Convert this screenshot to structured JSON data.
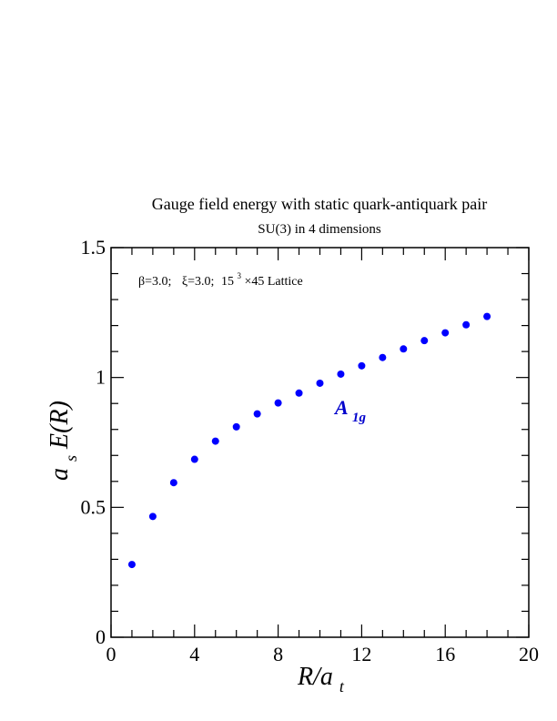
{
  "chart_data": {
    "type": "scatter",
    "title": "Gauge field energy with static quark-antiquark pair",
    "subtitle": "SU(3) in 4 dimensions",
    "annotation": {
      "beta": "β=3.0;",
      "xi": "ξ=3.0;",
      "lattice_base": "15",
      "lattice_exp": "3",
      "lattice_rest": "×45 Lattice"
    },
    "xlabel": {
      "main": "R/a",
      "sub": "t"
    },
    "ylabel": {
      "pre": "a",
      "sub": "s",
      "main": "E(R)"
    },
    "xlim": [
      0,
      20
    ],
    "ylim": [
      0,
      1.5
    ],
    "x_ticks": [
      "0",
      "4",
      "8",
      "12",
      "16",
      "20"
    ],
    "y_ticks": [
      "0",
      "0.5",
      "1",
      "1.5"
    ],
    "grid": false,
    "legend": "none",
    "series": [
      {
        "name_main": "A",
        "name_sub": "1g",
        "color": "#0000ff",
        "x": [
          1,
          2,
          3,
          4,
          5,
          6,
          7,
          8,
          9,
          10,
          11,
          12,
          13,
          14,
          15,
          16,
          17,
          18
        ],
        "y": [
          0.28,
          0.465,
          0.595,
          0.685,
          0.755,
          0.81,
          0.86,
          0.902,
          0.94,
          0.978,
          1.013,
          1.045,
          1.077,
          1.11,
          1.142,
          1.172,
          1.203,
          1.235
        ]
      }
    ]
  }
}
